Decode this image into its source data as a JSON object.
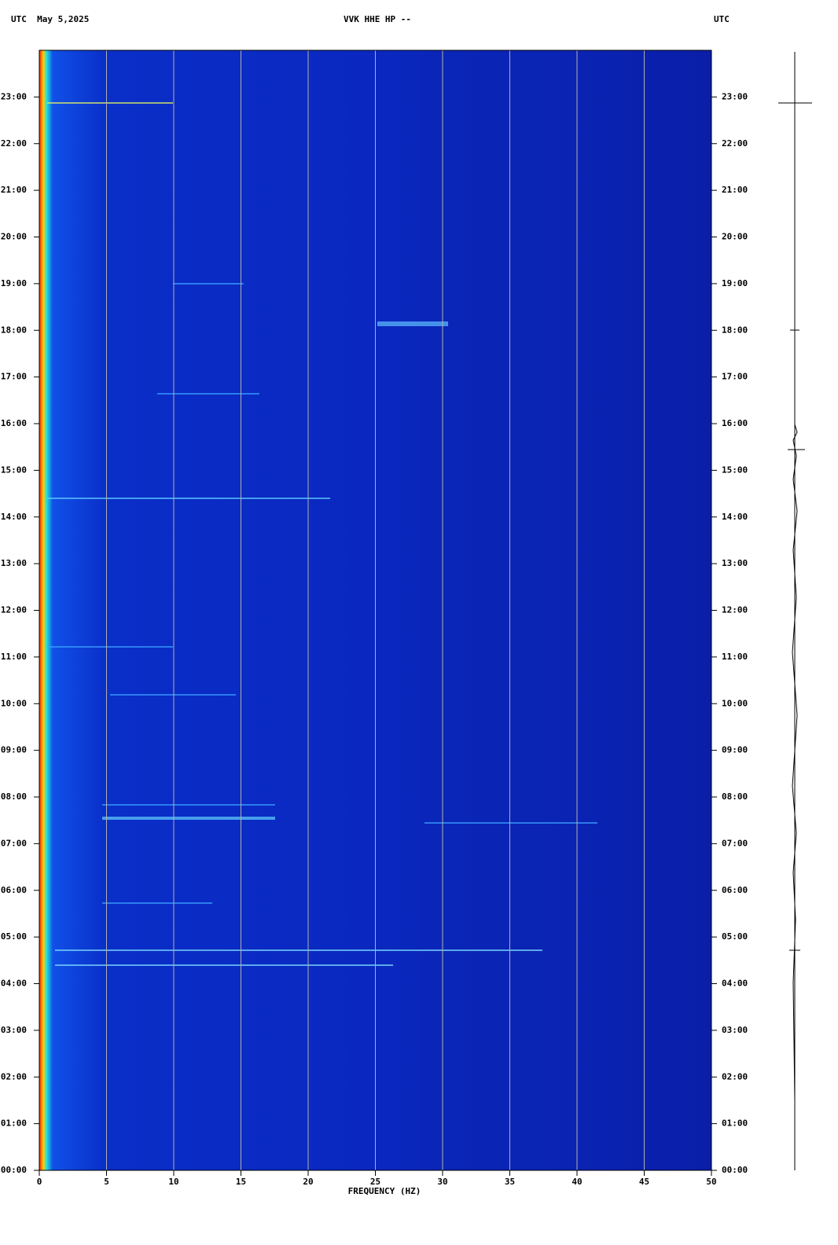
{
  "chart_data": {
    "type": "spectrogram",
    "title": "VVK HHE HP --",
    "date_label": "UTC  May 5,2025",
    "right_label": "UTC",
    "x_label": "FREQUENCY (HZ)",
    "xlim": [
      0,
      50
    ],
    "xticks": [
      0,
      5,
      10,
      15,
      20,
      25,
      30,
      35,
      40,
      45,
      50
    ],
    "ylim": [
      0,
      24
    ],
    "yticks": [
      {
        "value": 0,
        "label": "00:00"
      },
      {
        "value": 1,
        "label": "01:00"
      },
      {
        "value": 2,
        "label": "02:00"
      },
      {
        "value": 3,
        "label": "03:00"
      },
      {
        "value": 4,
        "label": "04:00"
      },
      {
        "value": 5,
        "label": "05:00"
      },
      {
        "value": 6,
        "label": "06:00"
      },
      {
        "value": 7,
        "label": "07:00"
      },
      {
        "value": 8,
        "label": "08:00"
      },
      {
        "value": 9,
        "label": "09:00"
      },
      {
        "value": 10,
        "label": "10:00"
      },
      {
        "value": 11,
        "label": "11:00"
      },
      {
        "value": 12,
        "label": "12:00"
      },
      {
        "value": 13,
        "label": "13:00"
      },
      {
        "value": 14,
        "label": "14:00"
      },
      {
        "value": 15,
        "label": "15:00"
      },
      {
        "value": 16,
        "label": "16:00"
      },
      {
        "value": 17,
        "label": "17:00"
      },
      {
        "value": 18,
        "label": "18:00"
      },
      {
        "value": 19,
        "label": "19:00"
      },
      {
        "value": 20,
        "label": "20:00"
      },
      {
        "value": 21,
        "label": "21:00"
      },
      {
        "value": 22,
        "label": "22:00"
      },
      {
        "value": 23,
        "label": "23:00"
      }
    ],
    "grid": true,
    "grid_color": "#b0b0b0"
  }
}
